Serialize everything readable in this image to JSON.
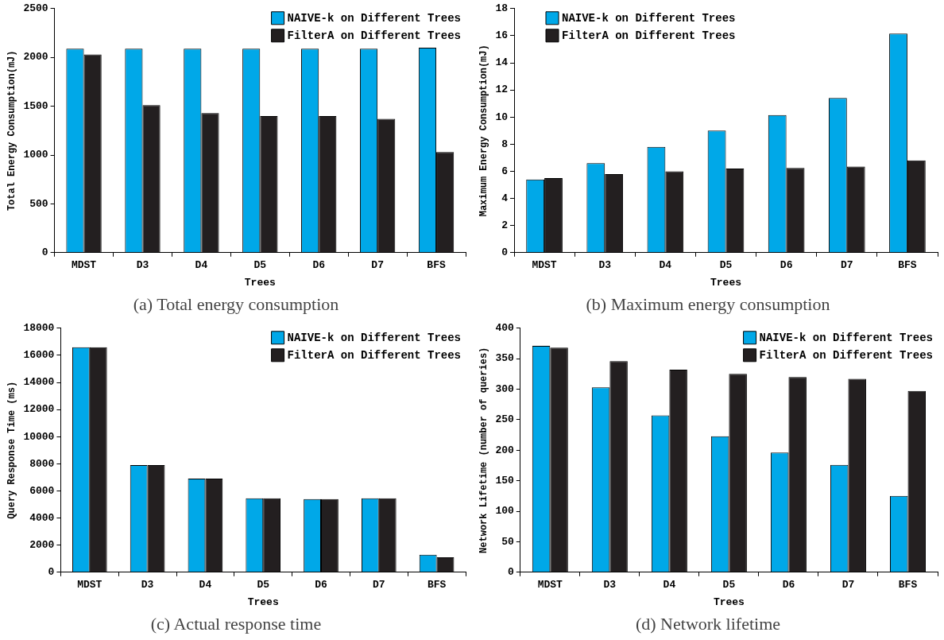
{
  "chart_data": [
    {
      "type": "bar",
      "title": "(a) Total energy consumption",
      "xlabel": "Trees",
      "ylabel": "Total Energy Consumption(mJ)",
      "categories": [
        "MDST",
        "D3",
        "D4",
        "D5",
        "D6",
        "D7",
        "BFS"
      ],
      "series": [
        {
          "name": "NAIVE-k on Different Trees",
          "color": "#00a8e8",
          "values": [
            2090,
            2090,
            2090,
            2090,
            2090,
            2090,
            2100
          ]
        },
        {
          "name": "FilterA on Different Trees",
          "color": "#231f20",
          "values": [
            2030,
            1510,
            1430,
            1400,
            1400,
            1370,
            1030
          ]
        }
      ],
      "ylim": [
        0,
        2500
      ],
      "yticks": [
        0,
        500,
        1000,
        1500,
        2000,
        2500
      ],
      "grid": false,
      "legend": "top right"
    },
    {
      "type": "bar",
      "title": "(b) Maximum energy consumption",
      "xlabel": "Trees",
      "ylabel": "Maximum Energy Consumption(mJ)",
      "categories": [
        "MDST",
        "D3",
        "D4",
        "D5",
        "D6",
        "D7",
        "BFS"
      ],
      "series": [
        {
          "name": "NAIVE-k on Different Trees",
          "color": "#00a8e8",
          "values": [
            5.4,
            6.6,
            7.8,
            9.0,
            10.15,
            11.4,
            16.15
          ]
        },
        {
          "name": "FilterA on Different Trees",
          "color": "#231f20",
          "values": [
            5.5,
            5.8,
            6.0,
            6.2,
            6.25,
            6.35,
            6.8
          ]
        }
      ],
      "ylim": [
        0,
        18
      ],
      "yticks": [
        0,
        2,
        4,
        6,
        8,
        10,
        12,
        14,
        16,
        18
      ],
      "grid": false,
      "legend": "top left"
    },
    {
      "type": "bar",
      "title": "(c) Actual response time",
      "xlabel": "Trees",
      "ylabel": "Query Response Time (ms)",
      "categories": [
        "MDST",
        "D3",
        "D4",
        "D5",
        "D6",
        "D7",
        "BFS"
      ],
      "series": [
        {
          "name": "NAIVE-k on Different Trees",
          "color": "#00a8e8",
          "values": [
            16600,
            7900,
            6900,
            5450,
            5400,
            5450,
            1300
          ]
        },
        {
          "name": "FilterA on Different Trees",
          "color": "#231f20",
          "values": [
            16600,
            7900,
            6900,
            5450,
            5400,
            5450,
            1100
          ]
        }
      ],
      "ylim": [
        0,
        18000
      ],
      "yticks": [
        0,
        2000,
        4000,
        6000,
        8000,
        10000,
        12000,
        14000,
        16000,
        18000
      ],
      "grid": false,
      "legend": "top right"
    },
    {
      "type": "bar",
      "title": "(d) Network lifetime",
      "xlabel": "Trees",
      "ylabel": "Network Lifetime (number of queries)",
      "categories": [
        "MDST",
        "D3",
        "D4",
        "D5",
        "D6",
        "D7",
        "BFS"
      ],
      "series": [
        {
          "name": "NAIVE-k on Different Trees",
          "color": "#00a8e8",
          "values": [
            371,
            303,
            257,
            223,
            196,
            176,
            125
          ]
        },
        {
          "name": "FilterA on Different Trees",
          "color": "#231f20",
          "values": [
            368,
            346,
            332,
            325,
            320,
            317,
            297
          ]
        }
      ],
      "ylim": [
        0,
        400
      ],
      "yticks": [
        0,
        50,
        100,
        150,
        200,
        250,
        300,
        350,
        400
      ],
      "grid": false,
      "legend": "top right"
    }
  ]
}
